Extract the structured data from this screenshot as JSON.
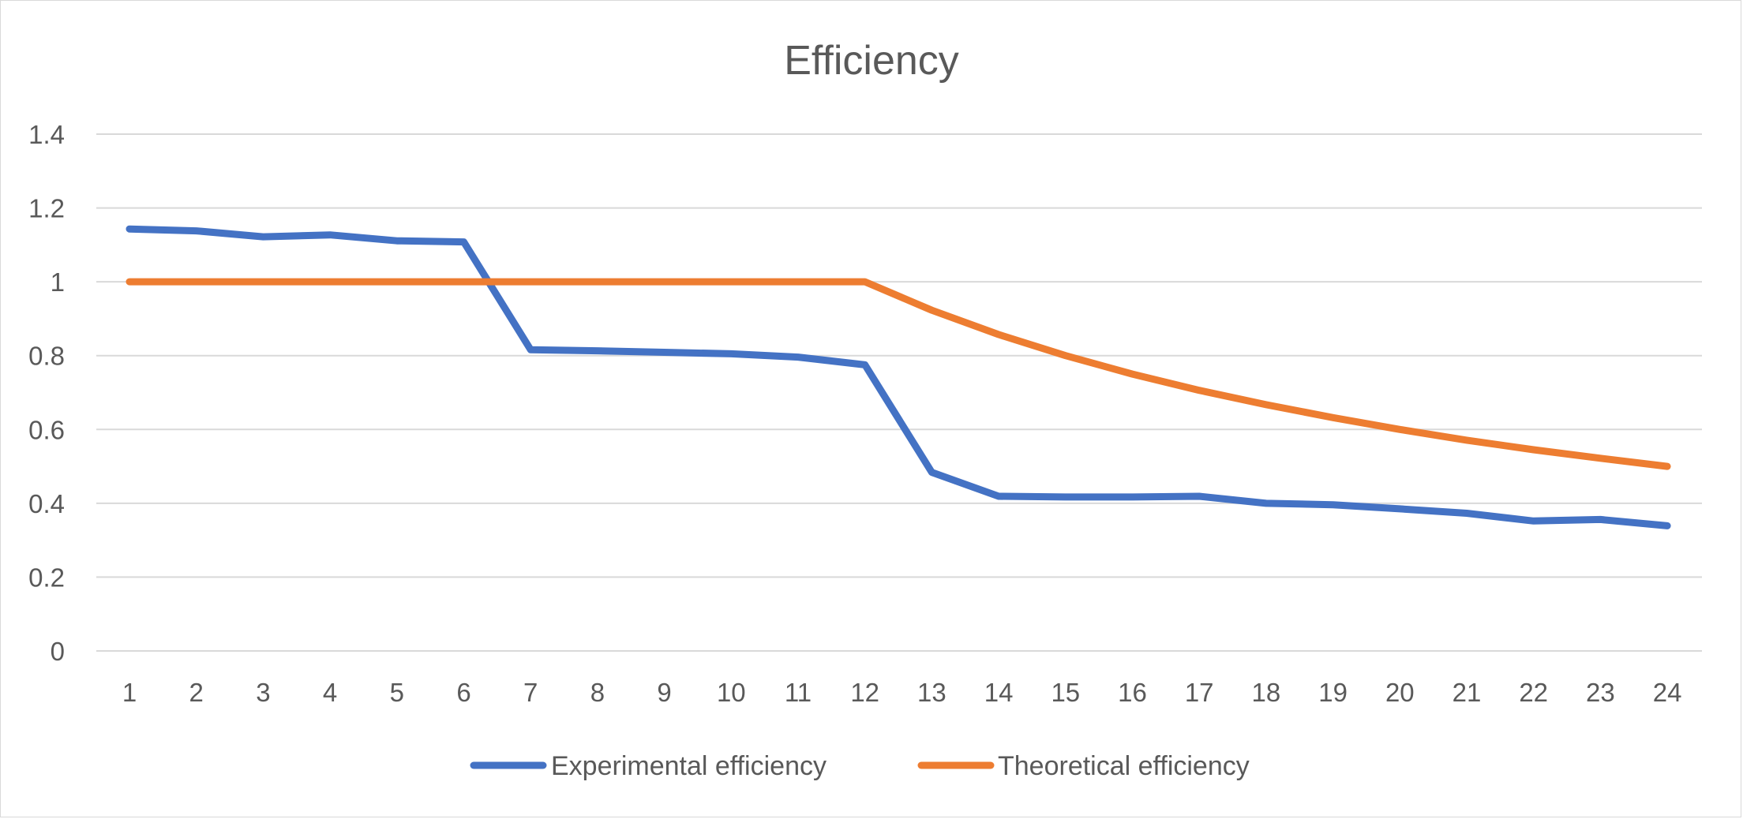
{
  "chart_data": {
    "type": "line",
    "title": "Efficiency",
    "xlabel": "",
    "ylabel": "",
    "categories": [
      "1",
      "2",
      "3",
      "4",
      "5",
      "6",
      "7",
      "8",
      "9",
      "10",
      "11",
      "12",
      "13",
      "14",
      "15",
      "16",
      "17",
      "18",
      "19",
      "20",
      "21",
      "22",
      "23",
      "24"
    ],
    "y_ticks": [
      "0",
      "0.2",
      "0.4",
      "0.6",
      "0.8",
      "1",
      "1.2",
      "1.4"
    ],
    "ylim": [
      0,
      1.4
    ],
    "grid": true,
    "legend_position": "bottom",
    "series": [
      {
        "name": "Experimental efficiency",
        "color": "#4472c4",
        "values": [
          1.143,
          1.138,
          1.122,
          1.127,
          1.111,
          1.108,
          0.816,
          0.813,
          0.809,
          0.805,
          0.796,
          0.775,
          0.484,
          0.419,
          0.417,
          0.417,
          0.419,
          0.4,
          0.396,
          0.385,
          0.373,
          0.352,
          0.356,
          0.339
        ]
      },
      {
        "name": "Theoretical efficiency",
        "color": "#ed7d31",
        "values": [
          1,
          1,
          1,
          1,
          1,
          1,
          1,
          1,
          1,
          1,
          1,
          1,
          0.923,
          0.857,
          0.8,
          0.75,
          0.706,
          0.667,
          0.632,
          0.6,
          0.571,
          0.545,
          0.522,
          0.5
        ]
      }
    ]
  }
}
